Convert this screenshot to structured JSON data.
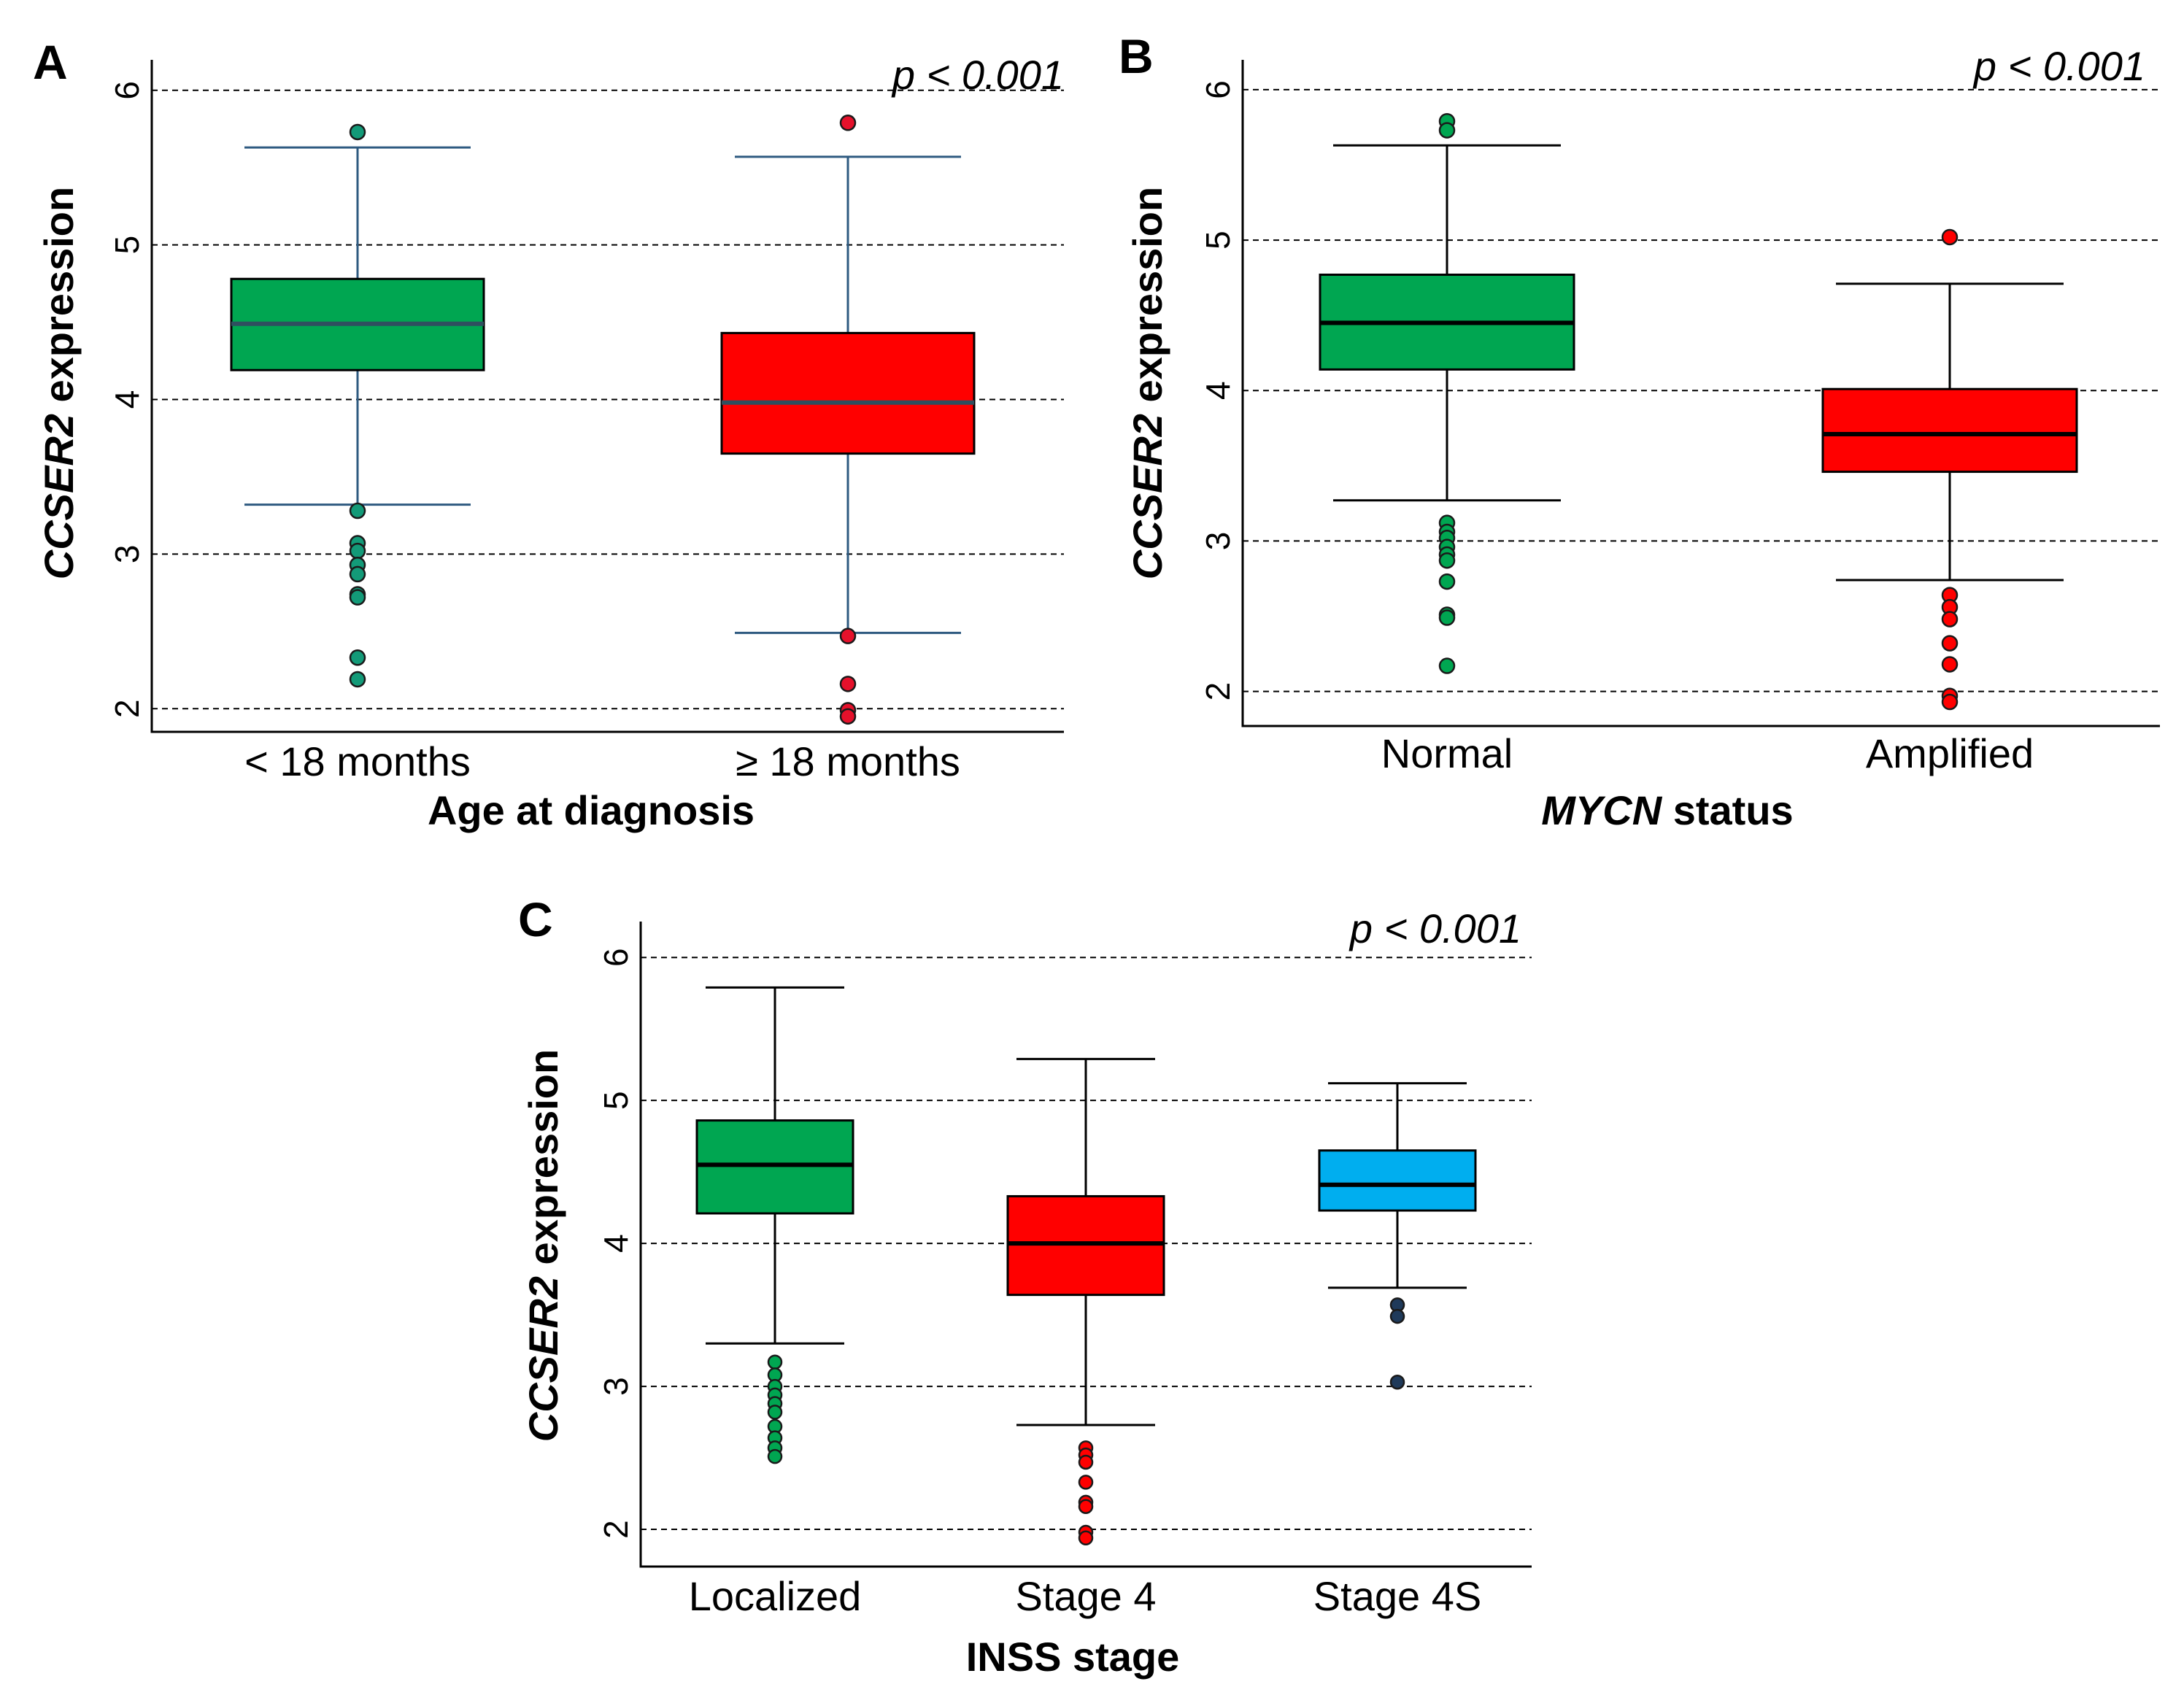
{
  "chart_data": [
    {
      "type": "box",
      "panel": "A",
      "p_value": "p < 0.001",
      "ylabel": {
        "italic": "CCSER2",
        "rest": " expression"
      },
      "xlabel": {
        "italic": "",
        "rest": "Age at diagnosis"
      },
      "ylim": [
        1.85,
        6.15
      ],
      "yticks": [
        "2",
        "3",
        "4",
        "5",
        "6"
      ],
      "grid": true,
      "whisker_color": "#2e5a80",
      "median_color": "#2f4f5f",
      "categories": [
        "<  18 months",
        "≥ 18 months"
      ],
      "boxes": [
        {
          "q1": 4.19,
          "median": 4.49,
          "q3": 4.78,
          "whisker_low": 3.32,
          "whisker_high": 5.63,
          "color": "#00a651",
          "outlier_color": "#139a78",
          "outliers": [
            5.73,
            3.28,
            3.07,
            3.02,
            2.93,
            2.87,
            2.74,
            2.72,
            2.33,
            2.19
          ]
        },
        {
          "q1": 3.65,
          "median": 3.98,
          "q3": 4.43,
          "whisker_low": 2.49,
          "whisker_high": 5.57,
          "color": "#ff0000",
          "outlier_color": "#e5112b",
          "outliers": [
            5.79,
            2.47,
            2.16,
            1.99,
            1.95
          ]
        }
      ]
    },
    {
      "type": "box",
      "panel": "B",
      "p_value": "p < 0.001",
      "ylabel": {
        "italic": "CCSER2",
        "rest": " expression"
      },
      "xlabel": {
        "italic": "MYCN",
        "rest": " status"
      },
      "ylim": [
        1.77,
        6.15
      ],
      "yticks": [
        "2",
        "3",
        "4",
        "5",
        "6"
      ],
      "grid": true,
      "whisker_color": "#000000",
      "median_color": "#000000",
      "categories": [
        "Normal",
        "Amplified"
      ],
      "boxes": [
        {
          "q1": 4.14,
          "median": 4.45,
          "q3": 4.77,
          "whisker_low": 3.27,
          "whisker_high": 5.63,
          "color": "#00a651",
          "outlier_color": "#00a651",
          "outliers": [
            5.79,
            5.73,
            3.12,
            3.06,
            3.02,
            2.96,
            2.91,
            2.87,
            2.73,
            2.51,
            2.49,
            2.17
          ]
        },
        {
          "q1": 3.46,
          "median": 3.71,
          "q3": 4.01,
          "whisker_low": 2.74,
          "whisker_high": 4.71,
          "color": "#ff0000",
          "outlier_color": "#ff0000",
          "outliers": [
            5.02,
            2.64,
            2.56,
            2.48,
            2.32,
            2.18,
            1.97,
            1.93
          ]
        }
      ]
    },
    {
      "type": "box",
      "panel": "C",
      "p_value": "p < 0.001",
      "ylabel": {
        "italic": "CCSER2",
        "rest": " expression"
      },
      "xlabel": {
        "italic": "",
        "rest": "INSS stage"
      },
      "ylim": [
        1.74,
        6.2
      ],
      "yticks": [
        "2",
        "3",
        "4",
        "5",
        "6"
      ],
      "grid": true,
      "whisker_color": "#000000",
      "median_color": "#000000",
      "categories": [
        "Localized",
        "Stage 4",
        "Stage 4S"
      ],
      "boxes": [
        {
          "q1": 4.21,
          "median": 4.55,
          "q3": 4.86,
          "whisker_low": 3.3,
          "whisker_high": 5.79,
          "color": "#00a651",
          "outlier_color": "#00a651",
          "outliers": [
            3.17,
            3.08,
            3.0,
            2.94,
            2.88,
            2.82,
            2.72,
            2.64,
            2.57,
            2.51
          ]
        },
        {
          "q1": 3.64,
          "median": 4.0,
          "q3": 4.33,
          "whisker_low": 2.73,
          "whisker_high": 5.29,
          "color": "#ff0000",
          "outlier_color": "#ff0000",
          "outliers": [
            2.57,
            2.52,
            2.47,
            2.33,
            2.19,
            2.16,
            1.98,
            1.94
          ]
        },
        {
          "q1": 4.23,
          "median": 4.41,
          "q3": 4.65,
          "whisker_low": 3.69,
          "whisker_high": 5.12,
          "color": "#00aeef",
          "outlier_color": "#1f3a5a",
          "outliers": [
            3.57,
            3.49,
            3.03
          ]
        }
      ]
    }
  ]
}
